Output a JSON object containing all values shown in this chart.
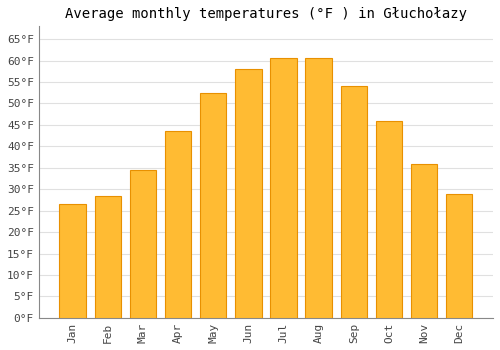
{
  "title": "Average monthly temperatures (°F ) in Głuchołazy",
  "months": [
    "Jan",
    "Feb",
    "Mar",
    "Apr",
    "May",
    "Jun",
    "Jul",
    "Aug",
    "Sep",
    "Oct",
    "Nov",
    "Dec"
  ],
  "values": [
    26.5,
    28.5,
    34.5,
    43.5,
    52.5,
    58.0,
    60.5,
    60.5,
    54.0,
    46.0,
    36.0,
    29.0
  ],
  "bar_color": "#FFBB33",
  "bar_edge_color": "#E89000",
  "background_color": "#FFFFFF",
  "grid_color": "#E0E0E0",
  "yticks": [
    0,
    5,
    10,
    15,
    20,
    25,
    30,
    35,
    40,
    45,
    50,
    55,
    60,
    65
  ],
  "ylim": [
    0,
    68
  ],
  "title_fontsize": 10,
  "tick_fontsize": 8,
  "font_family": "monospace"
}
